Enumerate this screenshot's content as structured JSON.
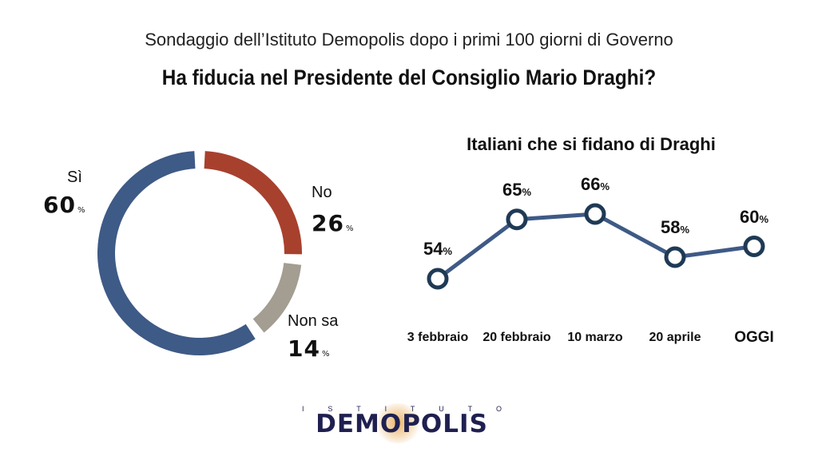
{
  "header": {
    "subtitle": "Sondaggio dell’Istituto Demopolis dopo i primi 100 giorni di Governo",
    "title": "Ha fiducia nel Presidente del Consiglio Mario Draghi?"
  },
  "chart_data": [
    {
      "type": "pie",
      "variant": "donut",
      "slices": [
        {
          "label": "Sì",
          "value": 60,
          "display": "60",
          "unit": "%",
          "color": "#3e5a86"
        },
        {
          "label": "No",
          "value": 26,
          "display": "26",
          "unit": "%",
          "color": "#a8402e"
        },
        {
          "label": "Non sa",
          "value": 14,
          "display": "14",
          "unit": "%",
          "color": "#a39d92"
        }
      ]
    },
    {
      "type": "line",
      "title": "Italiani che si fidano di Draghi",
      "categories": [
        "3 febbraio",
        "20 febbraio",
        "10 marzo",
        "20 aprile",
        "OGGI"
      ],
      "series": [
        {
          "values": [
            54,
            65,
            66,
            58,
            60
          ],
          "labels": [
            "54",
            "65",
            "66",
            "58",
            "60"
          ],
          "unit": "%",
          "color": "#3e5a86"
        }
      ]
    }
  ],
  "logo": {
    "top_letters": [
      "I",
      "S",
      "T",
      "I",
      "T",
      "U",
      "T",
      "O"
    ],
    "name": "DEMOPOLIS"
  }
}
